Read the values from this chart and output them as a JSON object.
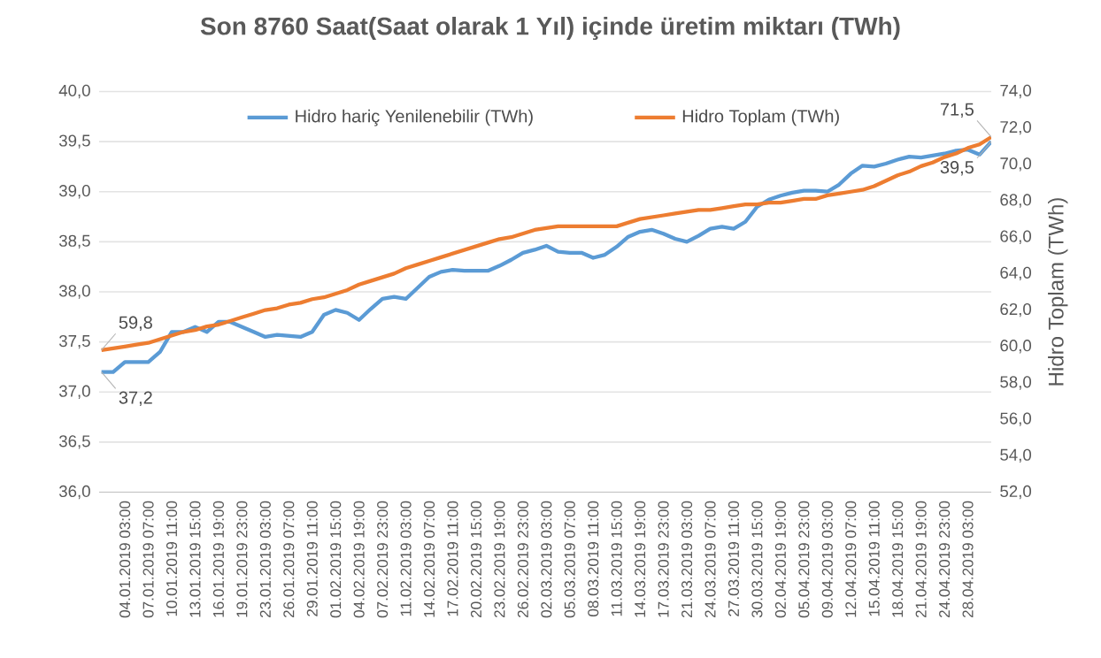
{
  "chart_data": {
    "type": "line",
    "title": "Son 8760 Saat(Saat olarak 1 Yıl) içinde üretim miktarı (TWh)",
    "y2label": "Hidro Toplam (TWh)",
    "categories": [
      null,
      null,
      "04.01.2019 03:00",
      null,
      "07.01.2019 07:00",
      null,
      "10.01.2019 11:00",
      null,
      "13.01.2019 15:00",
      null,
      "16.01.2019 19:00",
      null,
      "19.01.2019 23:00",
      null,
      "23.01.2019 03:00",
      null,
      "26.01.2019 07:00",
      null,
      "29.01.2019 11:00",
      null,
      "01.02.2019 15:00",
      null,
      "04.02.2019 19:00",
      null,
      "07.02.2019 23:00",
      null,
      "11.02.2019 03:00",
      null,
      "14.02.2019 07:00",
      null,
      "17.02.2019 11:00",
      null,
      "20.02.2019 15:00",
      null,
      "23.02.2019 19:00",
      null,
      "26.02.2019 23:00",
      null,
      "02.03.2019 03:00",
      null,
      "05.03.2019 07:00",
      null,
      "08.03.2019 11:00",
      null,
      "11.03.2019 15:00",
      null,
      "14.03.2019 19:00",
      null,
      "17.03.2019 23:00",
      null,
      "21.03.2019 03:00",
      null,
      "24.03.2019 07:00",
      null,
      "27.03.2019 11:00",
      null,
      "30.03.2019 15:00",
      null,
      "02.04.2019 19:00",
      null,
      "05.04.2019 23:00",
      null,
      "09.04.2019 03:00",
      null,
      "12.04.2019 07:00",
      null,
      "15.04.2019 11:00",
      null,
      "18.04.2019 15:00",
      null,
      "21.04.2019 19:00",
      null,
      "24.04.2019 23:00",
      null,
      "28.04.2019 03:00",
      null,
      null
    ],
    "series": [
      {
        "name": "Hidro hariç Yenilenebilir (TWh)",
        "color": "#5b9bd5",
        "values": [
          37.2,
          37.2,
          37.3,
          37.3,
          37.3,
          37.4,
          37.6,
          37.6,
          37.65,
          37.6,
          37.7,
          37.7,
          37.65,
          37.6,
          37.55,
          37.57,
          37.56,
          37.55,
          37.6,
          37.77,
          37.82,
          37.79,
          37.72,
          37.83,
          37.93,
          37.95,
          37.93,
          38.04,
          38.15,
          38.2,
          38.22,
          38.21,
          38.21,
          38.21,
          38.26,
          38.32,
          38.39,
          38.42,
          38.46,
          38.4,
          38.39,
          38.39,
          38.34,
          38.37,
          38.45,
          38.55,
          38.6,
          38.62,
          38.58,
          38.53,
          38.5,
          38.56,
          38.63,
          38.65,
          38.63,
          38.7,
          38.85,
          38.92,
          38.96,
          38.99,
          39.01,
          39.01,
          39.0,
          39.07,
          39.18,
          39.26,
          39.25,
          39.28,
          39.32,
          39.35,
          39.34,
          39.36,
          39.38,
          39.41,
          39.42,
          39.37,
          39.5
        ],
        "value_labels": [
          "37,2",
          null,
          null,
          null,
          null,
          null,
          null,
          null,
          null,
          null,
          null,
          null,
          null,
          null,
          null,
          null,
          null,
          null,
          null,
          null,
          null,
          null,
          null,
          null,
          null,
          null,
          null,
          null,
          null,
          null,
          null,
          null,
          null,
          null,
          null,
          null,
          null,
          null,
          null,
          null,
          null,
          null,
          null,
          null,
          null,
          null,
          null,
          null,
          null,
          null,
          null,
          null,
          null,
          null,
          null,
          null,
          null,
          null,
          null,
          null,
          null,
          null,
          null,
          null,
          null,
          null,
          null,
          null,
          null,
          null,
          null,
          null,
          null,
          null,
          null,
          null,
          "39,5"
        ]
      },
      {
        "name": "Hidro Toplam (TWh)",
        "color": "#ed7d31",
        "axis": "y2",
        "values": [
          59.8,
          59.9,
          60.0,
          60.1,
          60.2,
          60.4,
          60.6,
          60.8,
          60.9,
          61.1,
          61.2,
          61.4,
          61.6,
          61.8,
          62.0,
          62.1,
          62.3,
          62.4,
          62.6,
          62.7,
          62.9,
          63.1,
          63.4,
          63.6,
          63.8,
          64.0,
          64.3,
          64.5,
          64.7,
          64.9,
          65.1,
          65.3,
          65.5,
          65.7,
          65.9,
          66.0,
          66.2,
          66.4,
          66.5,
          66.6,
          66.6,
          66.6,
          66.6,
          66.6,
          66.6,
          66.8,
          67.0,
          67.1,
          67.2,
          67.3,
          67.4,
          67.5,
          67.5,
          67.6,
          67.7,
          67.8,
          67.8,
          67.9,
          67.9,
          68.0,
          68.1,
          68.1,
          68.3,
          68.4,
          68.5,
          68.6,
          68.8,
          69.1,
          69.4,
          69.6,
          69.9,
          70.1,
          70.4,
          70.6,
          70.9,
          71.1,
          71.5
        ],
        "value_labels": [
          "59,8",
          null,
          null,
          null,
          null,
          null,
          null,
          null,
          null,
          null,
          null,
          null,
          null,
          null,
          null,
          null,
          null,
          null,
          null,
          null,
          null,
          null,
          null,
          null,
          null,
          null,
          null,
          null,
          null,
          null,
          null,
          null,
          null,
          null,
          null,
          null,
          null,
          null,
          null,
          null,
          null,
          null,
          null,
          null,
          null,
          null,
          null,
          null,
          null,
          null,
          null,
          null,
          null,
          null,
          null,
          null,
          null,
          null,
          null,
          null,
          null,
          null,
          null,
          null,
          null,
          null,
          null,
          null,
          null,
          null,
          null,
          null,
          null,
          null,
          null,
          null,
          "71,5"
        ]
      }
    ],
    "ylim": [
      36,
      40
    ],
    "yticks": [
      {
        "value": 36,
        "label": "36,0"
      },
      {
        "value": 36.5,
        "label": "36,5"
      },
      {
        "value": 37,
        "label": "37,0"
      },
      {
        "value": 37.5,
        "label": "37,5"
      },
      {
        "value": 38,
        "label": "38,0"
      },
      {
        "value": 38.5,
        "label": "38,5"
      },
      {
        "value": 39,
        "label": "39,0"
      },
      {
        "value": 39.5,
        "label": "39,5"
      },
      {
        "value": 40,
        "label": "40,0"
      }
    ],
    "y2lim": [
      52,
      74
    ],
    "y2ticks": [
      {
        "value": 52,
        "label": "52,0"
      },
      {
        "value": 54,
        "label": "54,0"
      },
      {
        "value": 56,
        "label": "56,0"
      },
      {
        "value": 58,
        "label": "58,0"
      },
      {
        "value": 60,
        "label": "60,0"
      },
      {
        "value": 62,
        "label": "62,0"
      },
      {
        "value": 64,
        "label": "64,0"
      },
      {
        "value": 66,
        "label": "66,0"
      },
      {
        "value": 68,
        "label": "68,0"
      },
      {
        "value": 70,
        "label": "70,0"
      },
      {
        "value": 72,
        "label": "72,0"
      },
      {
        "value": 74,
        "label": "74,0"
      }
    ],
    "grid": "y",
    "legend": "top",
    "marker": "none",
    "line_style": "solid"
  }
}
